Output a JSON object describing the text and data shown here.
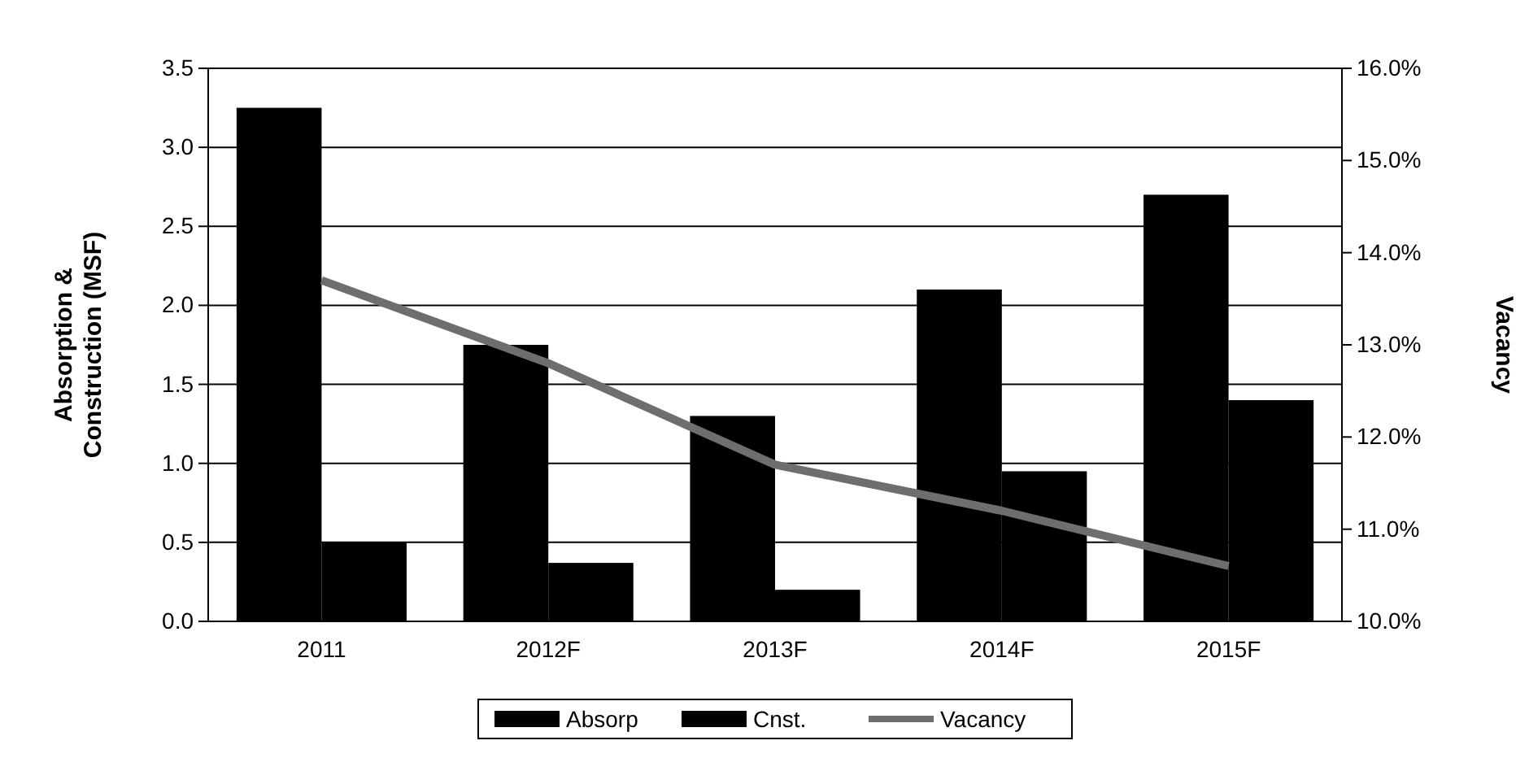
{
  "chart_data": {
    "type": "bar",
    "categories": [
      "2011",
      "2012F",
      "2013F",
      "2014F",
      "2015F"
    ],
    "series": [
      {
        "name": "Absorp",
        "color": "#000000",
        "values": [
          3.25,
          1.75,
          1.3,
          2.1,
          2.7
        ]
      },
      {
        "name": "Cnst.",
        "color": "#000000",
        "values": [
          0.5,
          0.37,
          0.2,
          0.95,
          1.4
        ]
      },
      {
        "name": "Vacancy",
        "type": "line",
        "axis": "y2",
        "color": "#6e6e6e",
        "values": [
          13.7,
          12.8,
          11.7,
          11.2,
          10.6
        ]
      }
    ],
    "ylabel": "Absorption & Construction (MSF)",
    "y2label": "Vacancy",
    "ylim": [
      0,
      3.5
    ],
    "yticks": [
      {
        "value": 0,
        "label": "0.0"
      },
      0.5,
      {
        "value": 1,
        "label": "1.0"
      },
      1.5,
      {
        "value": 2,
        "label": "2.0"
      },
      2.5,
      {
        "value": 3,
        "label": "3.0"
      },
      3.5
    ],
    "y2lim": [
      10,
      16
    ],
    "y2ticks": [
      {
        "value": 10,
        "label": "10.0%"
      },
      {
        "value": 11,
        "label": "11.0%"
      },
      {
        "value": 12,
        "label": "12.0%"
      },
      {
        "value": 13,
        "label": "13.0%"
      },
      {
        "value": 14,
        "label": "14.0%"
      },
      {
        "value": 15,
        "label": "15.0%"
      },
      {
        "value": 16,
        "label": "16.0%"
      }
    ],
    "grid": "y",
    "legend": "bottom",
    "marker": "none",
    "line_style": "solid"
  }
}
